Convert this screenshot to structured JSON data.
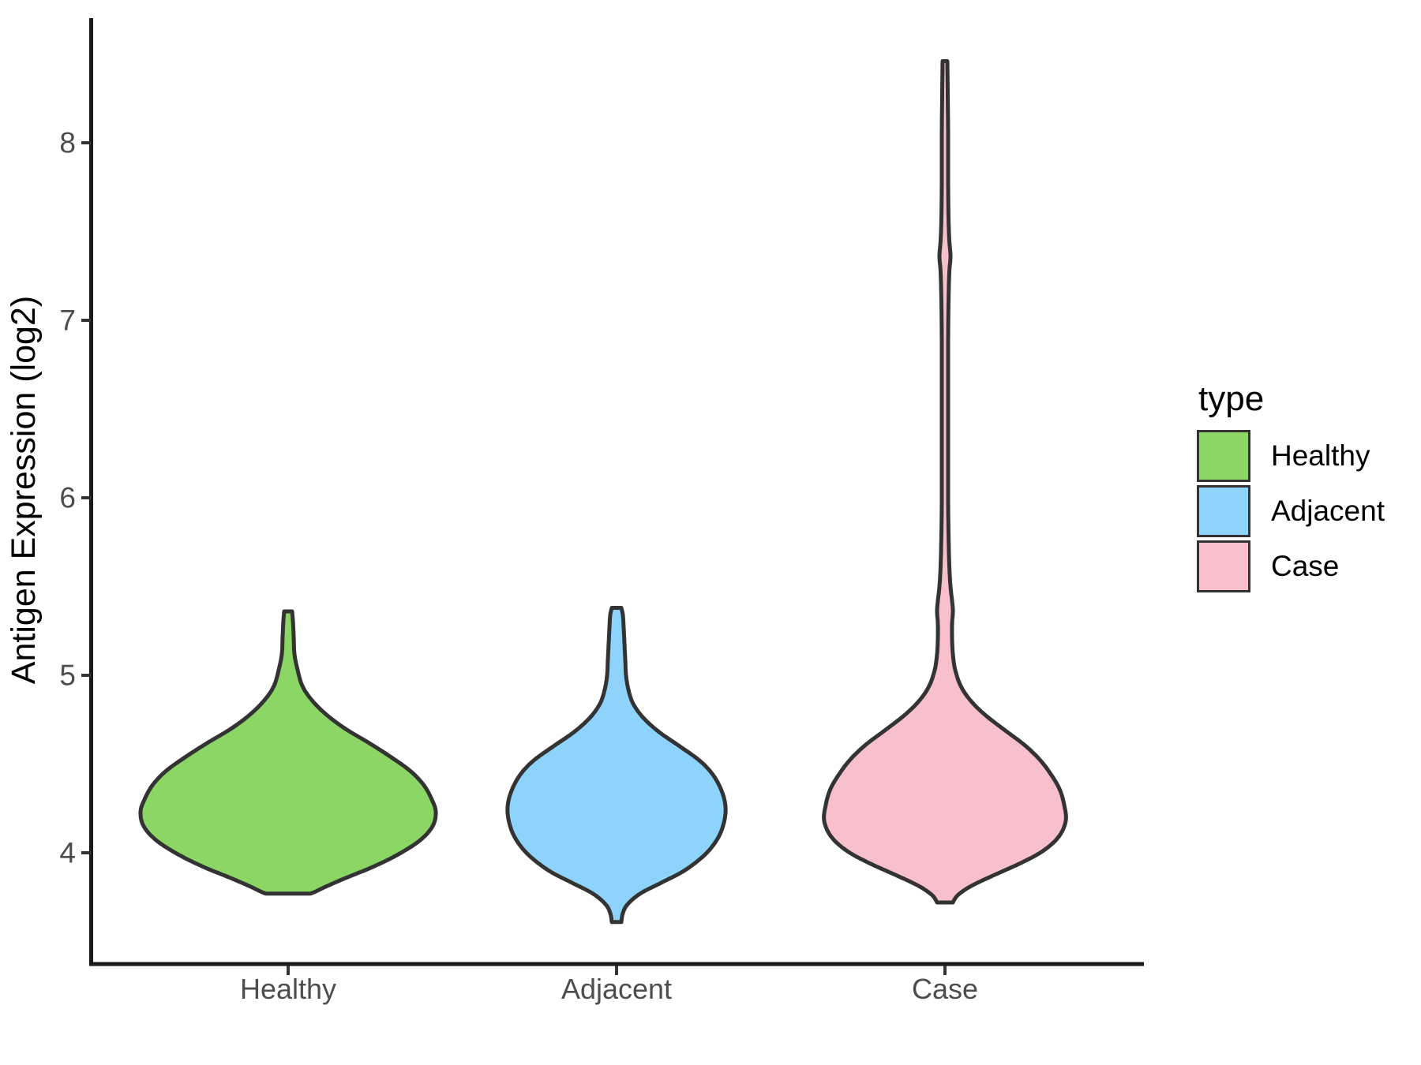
{
  "chart_data": {
    "type": "violin",
    "title": "",
    "xlabel": "",
    "ylabel": "Antigen Expression (log2)",
    "categories": [
      "Healthy",
      "Adjacent",
      "Case"
    ],
    "y_ticks": [
      4,
      5,
      6,
      7,
      8
    ],
    "y_axis_drawn_range": [
      3.37,
      8.7
    ],
    "grid": "off",
    "legend_position": "right",
    "legend": {
      "title": "type",
      "entries": [
        {
          "label": "Healthy",
          "color": "#8CD666"
        },
        {
          "label": "Adjacent",
          "color": "#8ED3FB"
        },
        {
          "label": "Case",
          "color": "#F8C0CC"
        }
      ]
    },
    "style": {
      "violin_outline_color": "#333333",
      "axis_line_color": "#1A1A1A",
      "tick_label_color": "#4D4D4D"
    },
    "series": [
      {
        "name": "Healthy",
        "color": "#8CD666",
        "summary": {
          "min": 3.77,
          "max": 5.36,
          "peak_density_at": 4.23
        },
        "profile": [
          [
            5.36,
            5
          ],
          [
            5.31,
            6
          ],
          [
            5.22,
            7
          ],
          [
            5.12,
            8
          ],
          [
            5.03,
            12
          ],
          [
            4.94,
            18
          ],
          [
            4.86,
            30
          ],
          [
            4.78,
            48
          ],
          [
            4.7,
            72
          ],
          [
            4.62,
            102
          ],
          [
            4.54,
            130
          ],
          [
            4.46,
            155
          ],
          [
            4.38,
            172
          ],
          [
            4.3,
            182
          ],
          [
            4.23,
            187
          ],
          [
            4.15,
            183
          ],
          [
            4.07,
            167
          ],
          [
            3.99,
            139
          ],
          [
            3.92,
            107
          ],
          [
            3.86,
            74
          ],
          [
            3.81,
            48
          ],
          [
            3.78,
            34
          ],
          [
            3.77,
            28
          ]
        ]
      },
      {
        "name": "Adjacent",
        "color": "#8ED3FB",
        "summary": {
          "min": 3.61,
          "max": 5.38,
          "peak_density_at": 4.25
        },
        "profile": [
          [
            5.38,
            6
          ],
          [
            5.34,
            8
          ],
          [
            5.27,
            9
          ],
          [
            5.18,
            10
          ],
          [
            5.09,
            11
          ],
          [
            5.0,
            12
          ],
          [
            4.92,
            15
          ],
          [
            4.84,
            21
          ],
          [
            4.76,
            34
          ],
          [
            4.68,
            54
          ],
          [
            4.6,
            80
          ],
          [
            4.52,
            105
          ],
          [
            4.44,
            122
          ],
          [
            4.35,
            133
          ],
          [
            4.26,
            138
          ],
          [
            4.17,
            136
          ],
          [
            4.08,
            128
          ],
          [
            3.99,
            112
          ],
          [
            3.9,
            86
          ],
          [
            3.83,
            56
          ],
          [
            3.77,
            30
          ],
          [
            3.71,
            14
          ],
          [
            3.66,
            8
          ],
          [
            3.61,
            6
          ]
        ]
      },
      {
        "name": "Case",
        "color": "#F8C0CC",
        "summary": {
          "min": 3.72,
          "max": 8.46,
          "peak_density_at": 4.18,
          "upper_tail_bulge_at": 7.36
        },
        "profile": [
          [
            8.46,
            3
          ],
          [
            8.28,
            3.5
          ],
          [
            8.05,
            4
          ],
          [
            7.8,
            4
          ],
          [
            7.58,
            4.5
          ],
          [
            7.45,
            5.5
          ],
          [
            7.36,
            7
          ],
          [
            7.27,
            5.5
          ],
          [
            7.1,
            4.5
          ],
          [
            6.85,
            4
          ],
          [
            6.55,
            4
          ],
          [
            6.25,
            4
          ],
          [
            6.0,
            4
          ],
          [
            5.8,
            4.5
          ],
          [
            5.62,
            5.5
          ],
          [
            5.5,
            7
          ],
          [
            5.42,
            9
          ],
          [
            5.36,
            10
          ],
          [
            5.29,
            9
          ],
          [
            5.21,
            9
          ],
          [
            5.12,
            10
          ],
          [
            5.03,
            13
          ],
          [
            4.94,
            20
          ],
          [
            4.86,
            32
          ],
          [
            4.78,
            50
          ],
          [
            4.69,
            76
          ],
          [
            4.61,
            100
          ],
          [
            4.53,
            119
          ],
          [
            4.45,
            133
          ],
          [
            4.36,
            145
          ],
          [
            4.27,
            151
          ],
          [
            4.18,
            153
          ],
          [
            4.09,
            144
          ],
          [
            4.01,
            124
          ],
          [
            3.94,
            95
          ],
          [
            3.87,
            60
          ],
          [
            3.81,
            32
          ],
          [
            3.76,
            16
          ],
          [
            3.72,
            10
          ]
        ]
      }
    ]
  }
}
